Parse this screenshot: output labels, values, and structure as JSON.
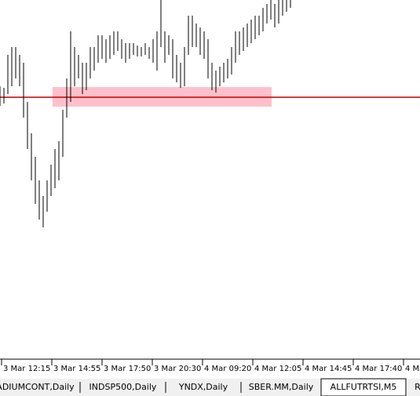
{
  "time_axis": {
    "labels": [
      "3 Mar 12:15",
      "3 Mar 14:55",
      "3 Mar 17:50",
      "3 Mar 20:30",
      "4 Mar 09:20",
      "4 Mar 12:05",
      "4 Mar 14:45",
      "4 Mar 17:40",
      "4 Ma"
    ]
  },
  "tabs": {
    "items": [
      "ADIUMCONT,Daily",
      "INDSP500,Daily",
      "YNDX,Daily",
      "SBER.MM,Daily",
      "ALLFUTRTSI,M5",
      "R"
    ],
    "active": 4
  }
}
